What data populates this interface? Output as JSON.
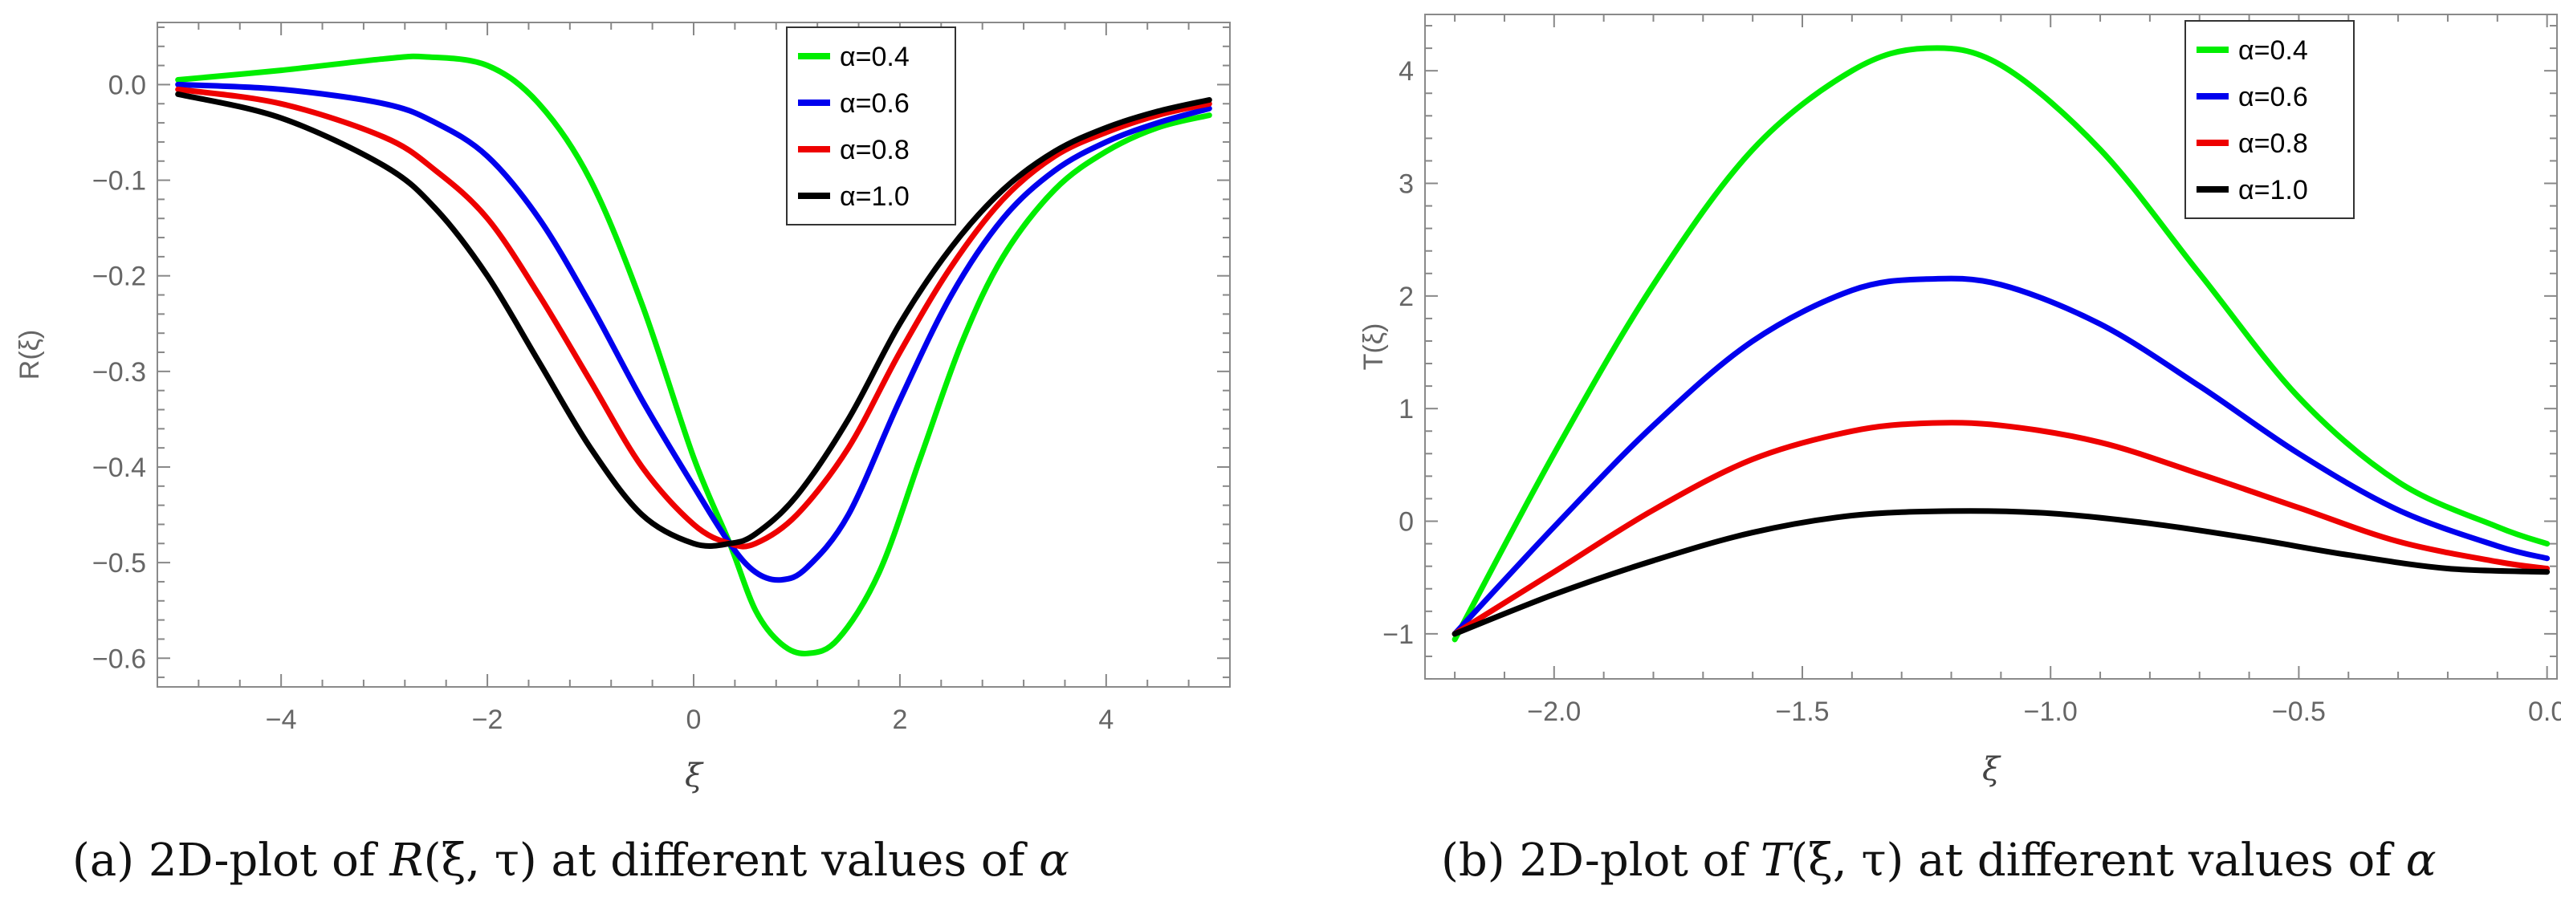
{
  "figures": [
    {
      "caption": {
        "label": "(a)",
        "prefix": "2D-plot of ",
        "func": "R",
        "args": "(ξ, τ)",
        "middle": " at different values of ",
        "param": "α"
      }
    },
    {
      "caption": {
        "label": "(b)",
        "prefix": "2D-plot of ",
        "func": "T",
        "args": "(ξ, τ)",
        "middle": " at different values of ",
        "param": "α"
      }
    }
  ],
  "chart_data": [
    {
      "type": "line",
      "xlabel": "ξ",
      "ylabel": "R(ξ)",
      "xlim": [
        -5.2,
        5.2
      ],
      "ylim": [
        -0.63,
        0.065
      ],
      "xticks": [
        -4,
        -2,
        0,
        2,
        4
      ],
      "xtick_labels": [
        "−4",
        "−2",
        "0",
        "2",
        "4"
      ],
      "yticks": [
        0.0,
        -0.1,
        -0.2,
        -0.3,
        -0.4,
        -0.5,
        -0.6
      ],
      "ytick_labels": [
        "0.0",
        "−0.1",
        "−0.2",
        "−0.3",
        "−0.4",
        "−0.5",
        "−0.6"
      ],
      "legend_position": "top-right",
      "series": [
        {
          "name": "α=0.4",
          "color": "#00ee00",
          "x": [
            -5,
            -4,
            -3,
            -2.6,
            -2,
            -1.5,
            -1,
            -0.5,
            0,
            0.35,
            0.6,
            0.85,
            1.1,
            1.4,
            1.8,
            2.2,
            2.6,
            3,
            3.5,
            4,
            4.5,
            5
          ],
          "y": [
            0.005,
            0.015,
            0.027,
            0.029,
            0.02,
            -0.02,
            -0.1,
            -0.23,
            -0.39,
            -0.48,
            -0.55,
            -0.585,
            -0.595,
            -0.58,
            -0.51,
            -0.39,
            -0.27,
            -0.18,
            -0.11,
            -0.07,
            -0.045,
            -0.032
          ]
        },
        {
          "name": "α=0.6",
          "color": "#0000ee",
          "x": [
            -5,
            -4,
            -3,
            -2.5,
            -2,
            -1.5,
            -1,
            -0.5,
            0,
            0.35,
            0.6,
            0.85,
            1.1,
            1.5,
            2,
            2.5,
            3,
            3.5,
            4,
            4.5,
            5
          ],
          "y": [
            0.0,
            -0.005,
            -0.02,
            -0.04,
            -0.075,
            -0.14,
            -0.23,
            -0.33,
            -0.42,
            -0.48,
            -0.51,
            -0.518,
            -0.505,
            -0.45,
            -0.33,
            -0.22,
            -0.14,
            -0.09,
            -0.06,
            -0.04,
            -0.025
          ]
        },
        {
          "name": "α=0.8",
          "color": "#ee0000",
          "x": [
            -5,
            -4,
            -3,
            -2.5,
            -2,
            -1.5,
            -1,
            -0.5,
            0,
            0.35,
            0.6,
            1,
            1.5,
            2,
            2.5,
            3,
            3.5,
            4,
            4.5,
            5
          ],
          "y": [
            -0.005,
            -0.02,
            -0.055,
            -0.09,
            -0.14,
            -0.22,
            -0.31,
            -0.4,
            -0.46,
            -0.48,
            -0.48,
            -0.45,
            -0.38,
            -0.28,
            -0.19,
            -0.12,
            -0.075,
            -0.05,
            -0.032,
            -0.02
          ]
        },
        {
          "name": "α=1.0",
          "color": "#000000",
          "x": [
            -5,
            -4,
            -3,
            -2.5,
            -2,
            -1.5,
            -1,
            -0.5,
            0,
            0.35,
            0.6,
            1,
            1.5,
            2,
            2.5,
            3,
            3.5,
            4,
            4.5,
            5
          ],
          "y": [
            -0.01,
            -0.035,
            -0.085,
            -0.13,
            -0.2,
            -0.29,
            -0.38,
            -0.45,
            -0.48,
            -0.48,
            -0.47,
            -0.43,
            -0.35,
            -0.25,
            -0.17,
            -0.11,
            -0.07,
            -0.045,
            -0.028,
            -0.016
          ]
        }
      ]
    },
    {
      "type": "line",
      "xlabel": "ξ",
      "ylabel": "T(ξ)",
      "xlim": [
        -2.26,
        0.02
      ],
      "ylim": [
        -1.4,
        4.5
      ],
      "xticks": [
        -2.0,
        -1.5,
        -1.0,
        -0.5,
        0.0
      ],
      "xtick_labels": [
        "−2.0",
        "−1.5",
        "−1.0",
        "−0.5",
        "0.0"
      ],
      "yticks": [
        -1,
        0,
        1,
        2,
        3,
        4
      ],
      "ytick_labels": [
        "−1",
        "0",
        "1",
        "2",
        "3",
        "4"
      ],
      "legend_position": "top-right",
      "series": [
        {
          "name": "α=0.4",
          "color": "#00ee00",
          "x": [
            -2.2,
            -2.0,
            -1.8,
            -1.6,
            -1.4,
            -1.25,
            -1.1,
            -0.9,
            -0.7,
            -0.5,
            -0.3,
            -0.1,
            0.0
          ],
          "y": [
            -1.05,
            0.6,
            2.1,
            3.3,
            4.0,
            4.2,
            4.05,
            3.3,
            2.2,
            1.1,
            0.35,
            -0.05,
            -0.2
          ]
        },
        {
          "name": "α=0.6",
          "color": "#0000ee",
          "x": [
            -2.2,
            -2.0,
            -1.8,
            -1.6,
            -1.4,
            -1.25,
            -1.1,
            -0.9,
            -0.7,
            -0.5,
            -0.3,
            -0.1,
            0.0
          ],
          "y": [
            -1.0,
            -0.05,
            0.85,
            1.6,
            2.05,
            2.15,
            2.1,
            1.75,
            1.2,
            0.6,
            0.1,
            -0.22,
            -0.33
          ]
        },
        {
          "name": "α=0.8",
          "color": "#ee0000",
          "x": [
            -2.2,
            -2.0,
            -1.8,
            -1.6,
            -1.4,
            -1.25,
            -1.1,
            -0.9,
            -0.7,
            -0.5,
            -0.3,
            -0.1,
            0.0
          ],
          "y": [
            -1.0,
            -0.45,
            0.1,
            0.55,
            0.8,
            0.87,
            0.85,
            0.7,
            0.42,
            0.12,
            -0.18,
            -0.36,
            -0.42
          ]
        },
        {
          "name": "α=1.0",
          "color": "#000000",
          "x": [
            -2.2,
            -2.0,
            -1.8,
            -1.6,
            -1.4,
            -1.2,
            -1.0,
            -0.8,
            -0.6,
            -0.4,
            -0.2,
            0.0
          ],
          "y": [
            -1.0,
            -0.65,
            -0.35,
            -0.1,
            0.05,
            0.09,
            0.07,
            -0.02,
            -0.15,
            -0.3,
            -0.42,
            -0.45
          ]
        }
      ]
    }
  ]
}
